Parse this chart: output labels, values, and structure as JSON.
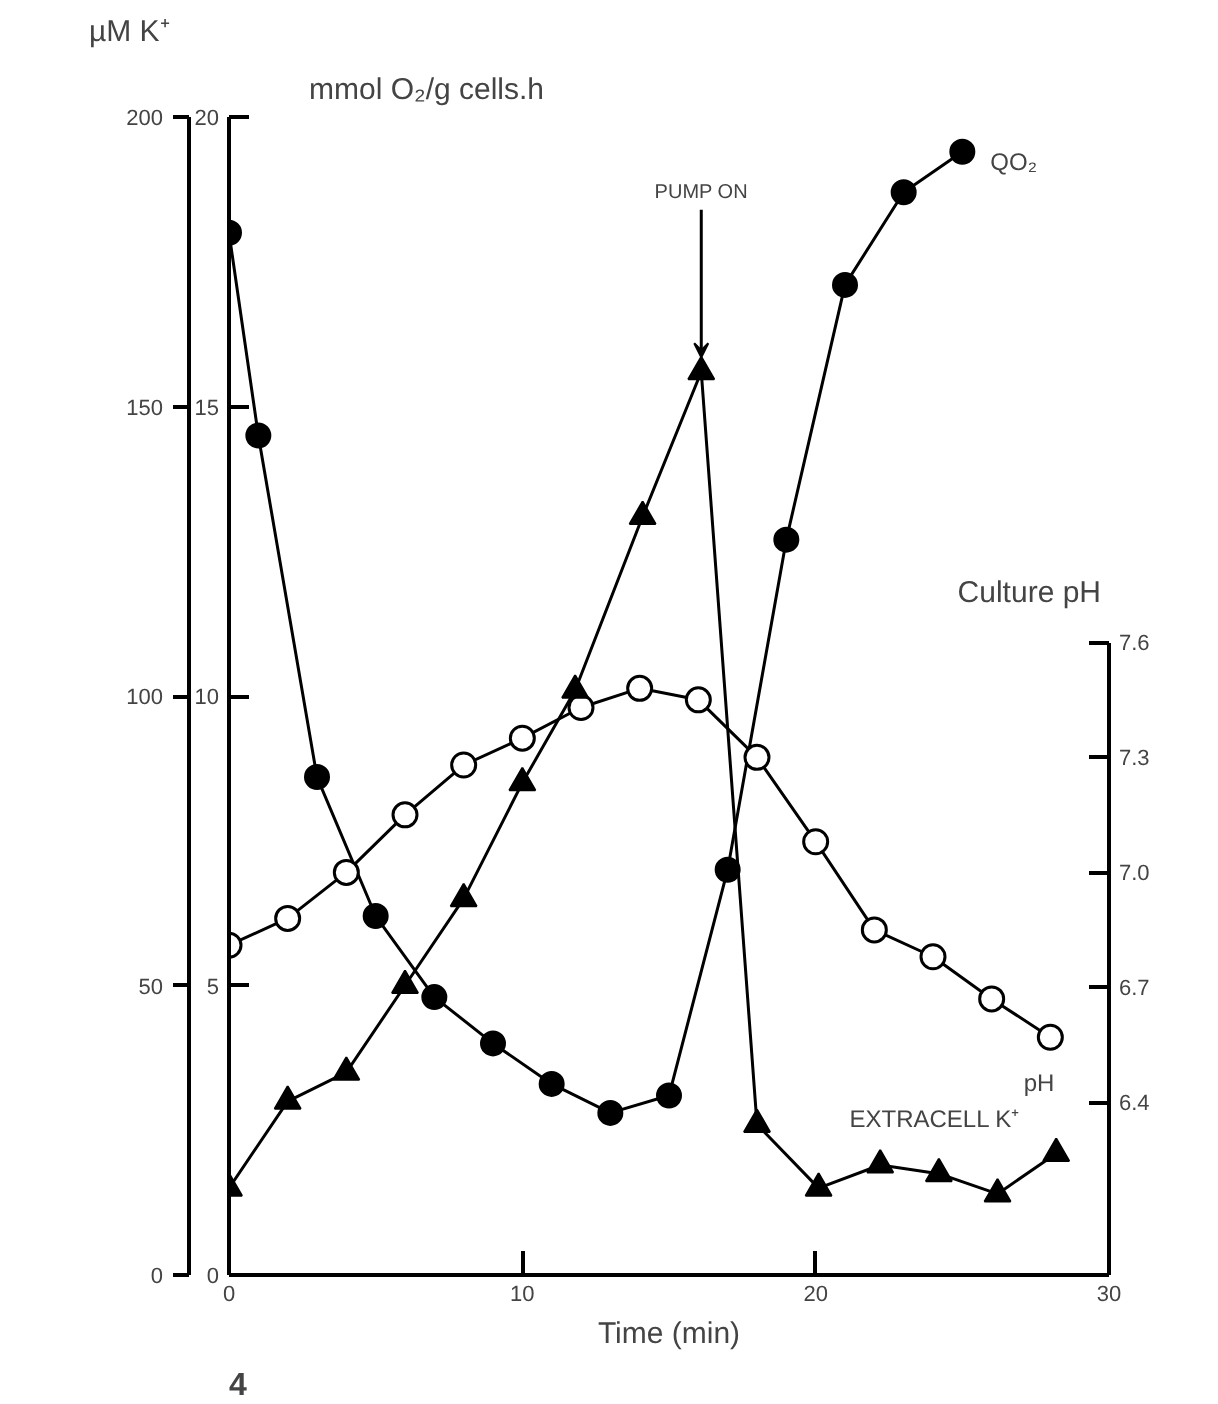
{
  "chart_data": {
    "type": "line",
    "xlabel": "Time (min)",
    "ylabel": "mmol O₂/g cells.h",
    "y2label": "µM K⁺",
    "y3label": "Culture pH",
    "xlim": [
      0,
      30
    ],
    "xticks": [
      0,
      10,
      20,
      30
    ],
    "ylim": [
      0,
      20
    ],
    "yticks": [
      0,
      5,
      10,
      15,
      20
    ],
    "y2lim": [
      0,
      200
    ],
    "y2ticks": [
      0,
      50,
      100,
      150,
      200
    ],
    "y3lim": [
      5.95,
      8.97
    ],
    "y3ticks": [
      6.4,
      6.7,
      {
        "value": 7.0,
        "label": "7.0"
      },
      7.3,
      7.6
    ],
    "grid": false,
    "series": [
      {
        "name": "QO₂",
        "color": "#000000",
        "marker": "circle",
        "x": [
          0,
          1,
          3,
          5,
          7,
          9,
          11,
          13,
          15,
          17,
          19,
          21,
          23,
          25
        ],
        "values": [
          18,
          14.5,
          8.6,
          6.2,
          4.8,
          4.0,
          3.3,
          2.8,
          3.1,
          7.0,
          12.7,
          17.1,
          18.7,
          19.4
        ]
      },
      {
        "name": "pH",
        "color": "#000000",
        "marker": "circle_open",
        "axis": "y3",
        "x": [
          0,
          2,
          4,
          6,
          8,
          10,
          12,
          14,
          16,
          18,
          20,
          22,
          24,
          26,
          28
        ],
        "values": [
          6.81,
          6.88,
          7.0,
          7.15,
          7.28,
          7.35,
          7.43,
          7.48,
          7.45,
          7.3,
          7.08,
          6.85,
          6.78,
          6.67,
          6.57
        ]
      },
      {
        "name": "EXTRACELL K⁺",
        "color": "#000000",
        "marker": "triangle",
        "axis": "y2",
        "x": [
          0,
          2,
          4,
          6,
          8,
          10,
          11.8,
          14.1,
          16.1,
          18,
          20.1,
          22.2,
          24.2,
          26.2,
          28.2
        ],
        "values": [
          15,
          30,
          35,
          50,
          65,
          85,
          101,
          131,
          156,
          26,
          15,
          19,
          17.5,
          14,
          21
        ]
      }
    ],
    "annotations": [
      {
        "text": "PUMP ON",
        "x": 16.1,
        "y": 15.6
      },
      "4"
    ]
  }
}
